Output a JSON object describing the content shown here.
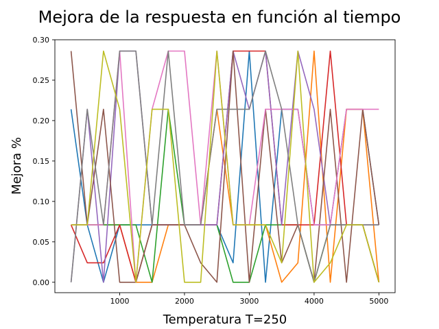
{
  "chart_data": {
    "type": "line",
    "title": "Mejora de la respuesta en función al tiempo",
    "xlabel": "Temperatura T=250",
    "ylabel": "Mejora %",
    "xlim": [
      0,
      5250
    ],
    "ylim": [
      -0.0129,
      0.3
    ],
    "x_ticks": [
      1000,
      2000,
      3000,
      4000,
      5000
    ],
    "y_ticks": [
      0.0,
      0.05,
      0.1,
      0.15,
      0.2,
      0.25,
      0.3
    ],
    "grid": false,
    "x": [
      250,
      500,
      750,
      1000,
      1250,
      1500,
      1750,
      2000,
      2250,
      2500,
      2750,
      3000,
      3250,
      3500,
      3750,
      4000,
      4250,
      4500,
      4750,
      5000
    ],
    "series": [
      {
        "color": "#1f77b4",
        "values": [
          0.214,
          0.071,
          0.0,
          0.071,
          0.071,
          0.071,
          0.071,
          0.071,
          0.071,
          0.071,
          0.024,
          0.286,
          0.0,
          0.214,
          0.214,
          0.071,
          0.071,
          0.214,
          0.214,
          0.071
        ]
      },
      {
        "color": "#ff7f0e",
        "values": [
          0.071,
          0.071,
          0.071,
          0.071,
          0.0,
          0.0,
          0.071,
          0.071,
          0.071,
          0.214,
          0.071,
          0.071,
          0.071,
          0.0,
          0.024,
          0.286,
          0.0,
          0.214,
          0.214,
          0.0
        ]
      },
      {
        "color": "#2ca02c",
        "values": [
          0.071,
          0.071,
          0.071,
          0.071,
          0.071,
          0.0,
          0.214,
          0.071,
          0.071,
          0.071,
          0.0,
          0.0,
          0.071,
          0.071,
          0.071,
          0.0,
          0.071,
          0.071,
          0.071,
          0.0
        ]
      },
      {
        "color": "#d62728",
        "values": [
          0.071,
          0.024,
          0.024,
          0.071,
          0.0,
          0.071,
          0.071,
          0.071,
          0.071,
          0.071,
          0.286,
          0.286,
          0.286,
          0.071,
          0.071,
          0.071,
          0.286,
          0.071,
          0.071,
          0.0
        ]
      },
      {
        "color": "#9467bd",
        "values": [
          0.0,
          0.214,
          0.0,
          0.286,
          0.286,
          0.071,
          0.071,
          0.071,
          0.071,
          0.071,
          0.286,
          0.214,
          0.286,
          0.071,
          0.286,
          0.214,
          0.071,
          0.071,
          0.071,
          0.071
        ]
      },
      {
        "color": "#8c564b",
        "values": [
          0.286,
          0.071,
          0.214,
          0.0,
          0.0,
          0.071,
          0.071,
          0.071,
          0.024,
          0.0,
          0.286,
          0.0,
          0.214,
          0.024,
          0.071,
          0.0,
          0.214,
          0.0,
          0.214,
          0.071
        ]
      },
      {
        "color": "#e377c2",
        "values": [
          0.071,
          0.071,
          0.071,
          0.286,
          0.0,
          0.214,
          0.286,
          0.286,
          0.071,
          0.286,
          0.071,
          0.071,
          0.214,
          0.214,
          0.214,
          0.071,
          0.071,
          0.214,
          0.214,
          0.214
        ]
      },
      {
        "color": "#7f7f7f",
        "values": [
          0.0,
          0.214,
          0.071,
          0.286,
          0.286,
          0.071,
          0.286,
          0.071,
          0.071,
          0.214,
          0.214,
          0.214,
          0.286,
          0.214,
          0.071,
          0.0,
          0.071,
          0.071,
          0.071,
          0.071
        ]
      },
      {
        "color": "#bcbd22",
        "values": [
          0.071,
          0.071,
          0.286,
          0.214,
          0.0,
          0.214,
          0.214,
          0.0,
          0.0,
          0.286,
          0.071,
          0.071,
          0.071,
          0.024,
          0.286,
          0.0,
          0.024,
          0.071,
          0.071,
          0.0
        ]
      }
    ]
  }
}
